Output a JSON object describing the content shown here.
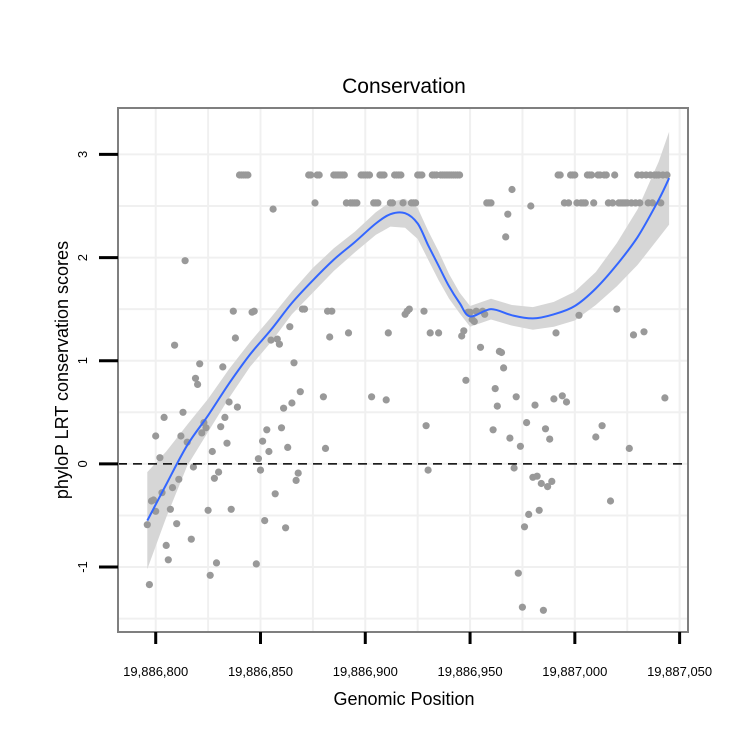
{
  "chart_data": {
    "type": "scatter",
    "title": "Conservation",
    "xlabel": "Genomic Position",
    "ylabel": "phyloP LRT conservation scores",
    "xlim": [
      19886782,
      19887054
    ],
    "ylim": [
      -1.63,
      3.45
    ],
    "x_ticks": [
      19886800,
      19886850,
      19886900,
      19886950,
      19887000,
      19887050
    ],
    "x_tick_labels": [
      "19,886,800",
      "19,886,850",
      "19,886,900",
      "19,886,950",
      "19,887,000",
      "19,887,050"
    ],
    "y_ticks": [
      -1,
      0,
      1,
      2,
      3
    ],
    "y_tick_labels": [
      "-1",
      "0",
      "1",
      "2",
      "3"
    ],
    "reference_line": {
      "y": 0,
      "style": "dashed"
    },
    "grid": true,
    "colors": {
      "points": "#999999",
      "smooth": "#3366FF",
      "ribbon": "#d6d6d6",
      "grid": "#f0f0f0",
      "frame": "#7f7f7f"
    },
    "points": [
      [
        19886796,
        -0.59
      ],
      [
        19886797,
        -1.17
      ],
      [
        19886798,
        -0.36
      ],
      [
        19886799,
        -0.35
      ],
      [
        19886800,
        0.27
      ],
      [
        19886800,
        -0.46
      ],
      [
        19886802,
        0.06
      ],
      [
        19886803,
        -0.28
      ],
      [
        19886804,
        0.45
      ],
      [
        19886805,
        -0.79
      ],
      [
        19886806,
        -0.93
      ],
      [
        19886807,
        -0.44
      ],
      [
        19886808,
        -0.23
      ],
      [
        19886809,
        1.15
      ],
      [
        19886810,
        -0.58
      ],
      [
        19886811,
        -0.15
      ],
      [
        19886812,
        0.27
      ],
      [
        19886813,
        0.5
      ],
      [
        19886814,
        1.97
      ],
      [
        19886815,
        0.21
      ],
      [
        19886817,
        -0.73
      ],
      [
        19886818,
        -0.03
      ],
      [
        19886819,
        0.83
      ],
      [
        19886820,
        0.77
      ],
      [
        19886821,
        0.97
      ],
      [
        19886822,
        0.3
      ],
      [
        19886823,
        0.4
      ],
      [
        19886824,
        0.35
      ],
      [
        19886825,
        -0.45
      ],
      [
        19886826,
        -1.08
      ],
      [
        19886827,
        0.12
      ],
      [
        19886828,
        -0.14
      ],
      [
        19886829,
        -0.96
      ],
      [
        19886830,
        -0.08
      ],
      [
        19886831,
        0.36
      ],
      [
        19886832,
        0.94
      ],
      [
        19886833,
        0.45
      ],
      [
        19886834,
        0.2
      ],
      [
        19886835,
        0.6
      ],
      [
        19886836,
        -0.44
      ],
      [
        19886837,
        1.48
      ],
      [
        19886838,
        1.22
      ],
      [
        19886839,
        0.55
      ],
      [
        19886840,
        2.8
      ],
      [
        19886841,
        2.8
      ],
      [
        19886842,
        2.8
      ],
      [
        19886843,
        2.8
      ],
      [
        19886844,
        2.8
      ],
      [
        19886846,
        1.47
      ],
      [
        19886847,
        1.48
      ],
      [
        19886848,
        -0.97
      ],
      [
        19886849,
        0.05
      ],
      [
        19886850,
        -0.06
      ],
      [
        19886851,
        0.22
      ],
      [
        19886852,
        -0.55
      ],
      [
        19886853,
        0.33
      ],
      [
        19886854,
        0.12
      ],
      [
        19886855,
        1.2
      ],
      [
        19886856,
        2.47
      ],
      [
        19886857,
        -0.29
      ],
      [
        19886858,
        1.21
      ],
      [
        19886859,
        1.16
      ],
      [
        19886860,
        0.35
      ],
      [
        19886861,
        0.54
      ],
      [
        19886862,
        -0.62
      ],
      [
        19886863,
        0.16
      ],
      [
        19886864,
        1.33
      ],
      [
        19886865,
        0.59
      ],
      [
        19886866,
        0.98
      ],
      [
        19886867,
        -0.16
      ],
      [
        19886868,
        -0.09
      ],
      [
        19886869,
        0.7
      ],
      [
        19886870,
        1.5
      ],
      [
        19886871,
        1.5
      ],
      [
        19886873,
        2.8
      ],
      [
        19886874,
        2.8
      ],
      [
        19886876,
        2.53
      ],
      [
        19886877,
        2.8
      ],
      [
        19886878,
        2.8
      ],
      [
        19886880,
        0.65
      ],
      [
        19886881,
        0.15
      ],
      [
        19886882,
        1.48
      ],
      [
        19886883,
        1.23
      ],
      [
        19886884,
        1.48
      ],
      [
        19886885,
        2.8
      ],
      [
        19886886,
        2.8
      ],
      [
        19886887,
        2.8
      ],
      [
        19886888,
        2.8
      ],
      [
        19886889,
        2.8
      ],
      [
        19886890,
        2.8
      ],
      [
        19886891,
        2.53
      ],
      [
        19886892,
        1.27
      ],
      [
        19886893,
        2.53
      ],
      [
        19886894,
        2.53
      ],
      [
        19886895,
        2.53
      ],
      [
        19886896,
        2.53
      ],
      [
        19886898,
        2.8
      ],
      [
        19886899,
        2.8
      ],
      [
        19886900,
        2.8
      ],
      [
        19886901,
        2.8
      ],
      [
        19886902,
        2.8
      ],
      [
        19886903,
        0.65
      ],
      [
        19886904,
        2.53
      ],
      [
        19886905,
        2.53
      ],
      [
        19886906,
        2.53
      ],
      [
        19886907,
        2.8
      ],
      [
        19886908,
        2.8
      ],
      [
        19886909,
        2.8
      ],
      [
        19886910,
        0.62
      ],
      [
        19886911,
        1.27
      ],
      [
        19886912,
        2.53
      ],
      [
        19886913,
        2.53
      ],
      [
        19886914,
        2.8
      ],
      [
        19886915,
        2.8
      ],
      [
        19886916,
        2.8
      ],
      [
        19886917,
        2.8
      ],
      [
        19886918,
        2.53
      ],
      [
        19886919,
        1.45
      ],
      [
        19886920,
        1.48
      ],
      [
        19886921,
        1.5
      ],
      [
        19886922,
        2.53
      ],
      [
        19886923,
        2.53
      ],
      [
        19886924,
        2.53
      ],
      [
        19886925,
        2.8
      ],
      [
        19886926,
        2.8
      ],
      [
        19886927,
        2.8
      ],
      [
        19886928,
        1.48
      ],
      [
        19886929,
        0.37
      ],
      [
        19886930,
        -0.06
      ],
      [
        19886931,
        1.27
      ],
      [
        19886932,
        2.8
      ],
      [
        19886933,
        2.8
      ],
      [
        19886934,
        2.8
      ],
      [
        19886935,
        1.27
      ],
      [
        19886936,
        2.8
      ],
      [
        19886937,
        2.8
      ],
      [
        19886938,
        2.8
      ],
      [
        19886939,
        2.8
      ],
      [
        19886940,
        2.8
      ],
      [
        19886941,
        2.8
      ],
      [
        19886942,
        2.8
      ],
      [
        19886943,
        2.8
      ],
      [
        19886944,
        2.8
      ],
      [
        19886945,
        2.8
      ],
      [
        19886946,
        1.24
      ],
      [
        19886947,
        1.29
      ],
      [
        19886948,
        0.81
      ],
      [
        19886949,
        1.47
      ],
      [
        19886950,
        1.47
      ],
      [
        19886951,
        1.4
      ],
      [
        19886952,
        1.38
      ],
      [
        19886953,
        1.48
      ],
      [
        19886955,
        1.13
      ],
      [
        19886956,
        1.48
      ],
      [
        19886957,
        1.45
      ],
      [
        19886958,
        2.53
      ],
      [
        19886959,
        2.53
      ],
      [
        19886960,
        2.53
      ],
      [
        19886961,
        0.33
      ],
      [
        19886962,
        0.73
      ],
      [
        19886963,
        0.56
      ],
      [
        19886964,
        1.09
      ],
      [
        19886965,
        1.08
      ],
      [
        19886966,
        0.93
      ],
      [
        19886967,
        2.2
      ],
      [
        19886968,
        2.42
      ],
      [
        19886969,
        0.25
      ],
      [
        19886970,
        2.66
      ],
      [
        19886971,
        -0.04
      ],
      [
        19886972,
        0.65
      ],
      [
        19886973,
        -1.06
      ],
      [
        19886974,
        0.17
      ],
      [
        19886975,
        -1.39
      ],
      [
        19886976,
        -0.61
      ],
      [
        19886977,
        0.4
      ],
      [
        19886978,
        -0.49
      ],
      [
        19886979,
        2.5
      ],
      [
        19886980,
        -0.13
      ],
      [
        19886981,
        0.57
      ],
      [
        19886982,
        -0.12
      ],
      [
        19886983,
        -0.45
      ],
      [
        19886984,
        -0.19
      ],
      [
        19886985,
        -1.42
      ],
      [
        19886986,
        0.34
      ],
      [
        19886987,
        -0.22
      ],
      [
        19886988,
        0.24
      ],
      [
        19886989,
        -0.17
      ],
      [
        19886990,
        0.63
      ],
      [
        19886991,
        1.27
      ],
      [
        19886992,
        2.8
      ],
      [
        19886993,
        2.8
      ],
      [
        19886994,
        0.66
      ],
      [
        19886995,
        2.53
      ],
      [
        19886996,
        0.6
      ],
      [
        19886997,
        2.53
      ],
      [
        19886998,
        2.8
      ],
      [
        19886999,
        2.8
      ],
      [
        19887000,
        2.8
      ],
      [
        19887001,
        2.53
      ],
      [
        19887002,
        1.44
      ],
      [
        19887003,
        2.53
      ],
      [
        19887004,
        2.53
      ],
      [
        19887005,
        2.53
      ],
      [
        19887006,
        2.8
      ],
      [
        19887007,
        2.8
      ],
      [
        19887008,
        2.8
      ],
      [
        19887009,
        2.53
      ],
      [
        19887010,
        0.26
      ],
      [
        19887011,
        2.8
      ],
      [
        19887012,
        2.8
      ],
      [
        19887013,
        0.37
      ],
      [
        19887014,
        2.8
      ],
      [
        19887015,
        2.8
      ],
      [
        19887016,
        2.53
      ],
      [
        19887017,
        -0.36
      ],
      [
        19887018,
        2.53
      ],
      [
        19887019,
        2.8
      ],
      [
        19887020,
        1.5
      ],
      [
        19887021,
        2.53
      ],
      [
        19887022,
        2.53
      ],
      [
        19887023,
        2.53
      ],
      [
        19887024,
        2.53
      ],
      [
        19887025,
        2.53
      ],
      [
        19887026,
        0.15
      ],
      [
        19887027,
        2.53
      ],
      [
        19887028,
        1.25
      ],
      [
        19887029,
        2.53
      ],
      [
        19887030,
        2.8
      ],
      [
        19887031,
        2.53
      ],
      [
        19887032,
        2.8
      ],
      [
        19887033,
        1.28
      ],
      [
        19887034,
        2.8
      ],
      [
        19887035,
        2.53
      ],
      [
        19887036,
        2.8
      ],
      [
        19887037,
        2.53
      ],
      [
        19887038,
        2.8
      ],
      [
        19887039,
        2.8
      ],
      [
        19887040,
        2.8
      ],
      [
        19887041,
        2.53
      ],
      [
        19887042,
        2.8
      ],
      [
        19887043,
        0.64
      ],
      [
        19887044,
        2.8
      ]
    ],
    "smooth_series": {
      "x": [
        19886796,
        19886805,
        19886815,
        19886825,
        19886835,
        19886845,
        19886855,
        19886865,
        19886875,
        19886885,
        19886895,
        19886905,
        19886912,
        19886919,
        19886925,
        19886930,
        19886935,
        19886940,
        19886945,
        19886950,
        19886960,
        19886970,
        19886980,
        19886990,
        19887000,
        19887010,
        19887020,
        19887030,
        19887040,
        19887045
      ],
      "y": [
        -0.55,
        -0.2,
        0.18,
        0.47,
        0.78,
        1.06,
        1.3,
        1.56,
        1.78,
        1.98,
        2.15,
        2.33,
        2.42,
        2.43,
        2.33,
        2.12,
        1.92,
        1.72,
        1.56,
        1.43,
        1.5,
        1.44,
        1.41,
        1.45,
        1.53,
        1.7,
        1.93,
        2.2,
        2.56,
        2.77
      ],
      "lower": [
        -1.02,
        -0.52,
        -0.02,
        0.31,
        0.64,
        0.94,
        1.18,
        1.45,
        1.66,
        1.87,
        2.05,
        2.22,
        2.3,
        2.29,
        2.18,
        1.98,
        1.78,
        1.6,
        1.46,
        1.33,
        1.4,
        1.34,
        1.3,
        1.33,
        1.39,
        1.54,
        1.72,
        1.93,
        2.19,
        2.32
      ],
      "upper": [
        -0.08,
        0.12,
        0.38,
        0.63,
        0.92,
        1.18,
        1.42,
        1.67,
        1.9,
        2.09,
        2.25,
        2.44,
        2.54,
        2.57,
        2.48,
        2.26,
        2.06,
        1.84,
        1.66,
        1.53,
        1.6,
        1.54,
        1.52,
        1.57,
        1.67,
        1.86,
        2.14,
        2.47,
        2.93,
        3.22
      ]
    }
  }
}
